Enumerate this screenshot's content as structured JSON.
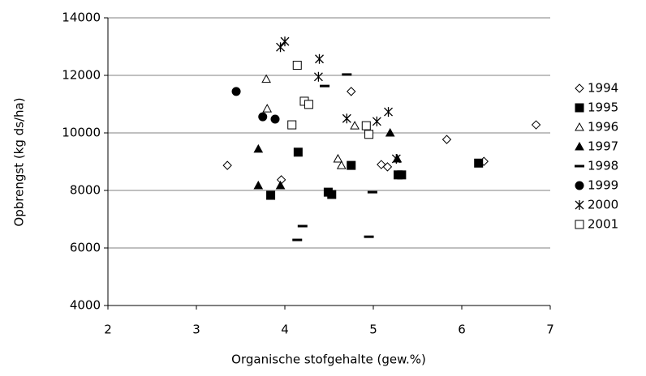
{
  "chart_data": {
    "type": "scatter",
    "x_label": "Organische stofgehalte (gew.%)",
    "y_label": "Opbrengst (kg ds/ha)",
    "xlim": [
      2,
      7
    ],
    "xticks": [
      2,
      3,
      4,
      5,
      6,
      7
    ],
    "ylim": [
      4000,
      14000
    ],
    "yticks": [
      4000,
      6000,
      8000,
      10000,
      12000,
      14000
    ],
    "grid": true,
    "legend": "right",
    "series": [
      {
        "name": "1994",
        "color": "#000000",
        "marker": "diamond-open",
        "x": [
          3.35,
          3.96,
          4.75,
          5.09,
          5.16,
          5.83,
          6.25,
          6.84
        ],
        "values": [
          8870,
          8370,
          11440,
          8900,
          8820,
          9770,
          9010,
          10280
        ]
      },
      {
        "name": "1995",
        "color": "#000000",
        "marker": "square-filled",
        "x": [
          3.84,
          4.49,
          4.53,
          4.75,
          4.15,
          5.28,
          5.32,
          6.19
        ],
        "values": [
          7830,
          7940,
          7860,
          8870,
          9330,
          8540,
          8540,
          8950
        ]
      },
      {
        "name": "1996",
        "color": "#000000",
        "marker": "triangle-open",
        "x": [
          3.79,
          3.8,
          4.79,
          4.6,
          4.64
        ],
        "values": [
          11870,
          10840,
          10250,
          9100,
          8870
        ]
      },
      {
        "name": "1997",
        "color": "#000000",
        "marker": "triangle-filled",
        "x": [
          3.7,
          3.7,
          3.95,
          5.19,
          5.27
        ],
        "values": [
          9440,
          8170,
          8170,
          10000,
          9100
        ]
      },
      {
        "name": "1998",
        "color": "#000000",
        "marker": "dash",
        "x": [
          4.45,
          4.7,
          4.14,
          4.2,
          4.95,
          4.99
        ],
        "values": [
          11630,
          12030,
          6280,
          6760,
          6390,
          7940
        ]
      },
      {
        "name": "1999",
        "color": "#000000",
        "marker": "circle-filled",
        "x": [
          3.45,
          3.75,
          3.89
        ],
        "values": [
          11440,
          10560,
          10480
        ]
      },
      {
        "name": "2000",
        "color": "#000000",
        "marker": "star",
        "x": [
          4.0,
          3.95,
          4.39,
          4.38,
          4.7,
          5.04,
          5.17,
          5.26
        ],
        "values": [
          13180,
          12980,
          12570,
          11950,
          10500,
          10400,
          10730,
          9100
        ]
      },
      {
        "name": "2001",
        "color": "#000000",
        "marker": "square-open",
        "x": [
          4.14,
          4.22,
          4.27,
          4.08,
          4.92,
          4.95
        ],
        "values": [
          12350,
          11100,
          10990,
          10280,
          10250,
          9950
        ]
      }
    ]
  }
}
